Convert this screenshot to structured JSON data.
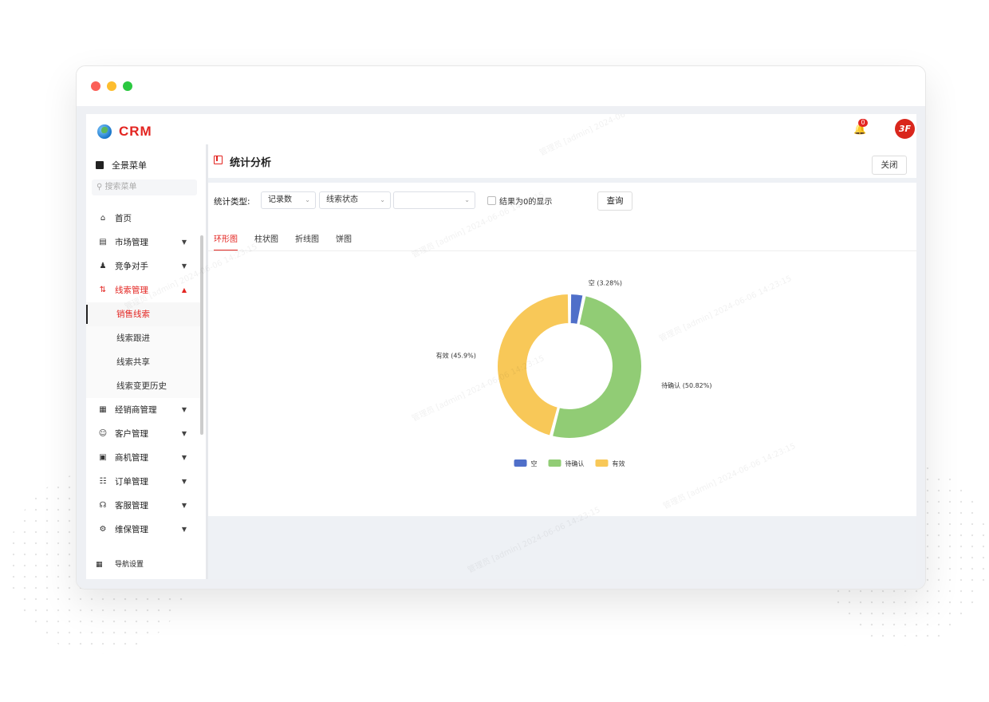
{
  "app": {
    "brand": "CRM",
    "notifications_count": "0",
    "avatar_text": "3F"
  },
  "sidebar": {
    "all_menu": "全景菜单",
    "search_placeholder": "搜索菜单",
    "items": [
      {
        "label": "首页",
        "icon": "home-icon"
      },
      {
        "label": "市场管理",
        "icon": "store-icon"
      },
      {
        "label": "竞争对手",
        "icon": "user-compare-icon"
      },
      {
        "label": "线索管理",
        "icon": "lead-icon"
      },
      {
        "label": "经销商管理",
        "icon": "map-icon"
      },
      {
        "label": "客户管理",
        "icon": "customer-icon"
      },
      {
        "label": "商机管理",
        "icon": "briefcase-icon"
      },
      {
        "label": "订单管理",
        "icon": "order-icon"
      },
      {
        "label": "客服管理",
        "icon": "headset-icon"
      },
      {
        "label": "维保管理",
        "icon": "wrench-icon"
      }
    ],
    "subitems": [
      "销售线索",
      "线索跟进",
      "线索共享",
      "线索变更历史"
    ],
    "nav_settings": "导航设置"
  },
  "panel": {
    "title": "统计分析",
    "close_label": "关闭"
  },
  "filters": {
    "type_label": "统计类型:",
    "select1": "记录数",
    "select2": "线索状态",
    "select3": "",
    "checkbox_label": "结果为0的显示",
    "query_label": "查询"
  },
  "chart_tabs": [
    "环形图",
    "柱状图",
    "折线图",
    "饼图"
  ],
  "watermark": "管理员 [admin] 2024-06-06 14:23:15",
  "chart_data": {
    "type": "pie",
    "variant": "donut",
    "legend_position": "bottom",
    "slices": [
      {
        "name": "空",
        "value": 3.28,
        "label": "空 (3.28%)",
        "color": "#4f6fc9"
      },
      {
        "name": "待确认",
        "value": 50.82,
        "label": "待确认 (50.82%)",
        "color": "#91cc75"
      },
      {
        "name": "有效",
        "value": 45.9,
        "label": "有效 (45.9%)",
        "color": "#f8c858"
      }
    ]
  }
}
